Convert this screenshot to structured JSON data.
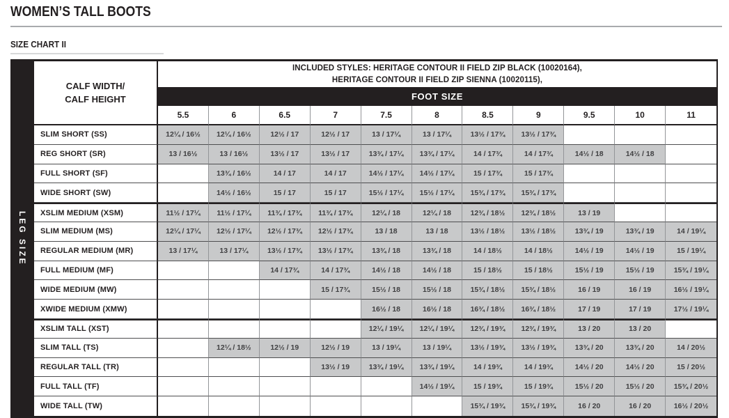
{
  "page": {
    "title": "WOMEN’S TALL BOOTS",
    "subtitle": "SIZE CHART II"
  },
  "colors": {
    "ink_black": "#231f20",
    "cell_gray": "#c8c9ca",
    "title_rule_gray": "#a8aaad",
    "subtitle_rule_gray": "#d7d8d9"
  },
  "table": {
    "leg_size_label": "LEG SIZE",
    "corner_label_line1": "CALF WIDTH/",
    "corner_label_line2": "CALF HEIGHT",
    "included_styles_line1": "INCLUDED STYLES: HERITAGE CONTOUR II FIELD ZIP BLACK (10020164),",
    "included_styles_line2": "HERITAGE CONTOUR II FIELD ZIP SIENNA (10020115),",
    "foot_size_label": "FOOT SIZE",
    "foot_sizes": [
      "5.5",
      "6",
      "6.5",
      "7",
      "7.5",
      "8",
      "8.5",
      "9",
      "9.5",
      "10",
      "11"
    ],
    "section_start_rows": [
      4,
      10
    ],
    "rows": [
      {
        "label": "SLIM SHORT (SS)",
        "cells": [
          "12¼ / 16½",
          "12¼ / 16½",
          "12½ / 17",
          "12½ / 17",
          "13 / 17¼",
          "13 / 17¼",
          "13½ / 17¾",
          "13½ / 17¾",
          "",
          "",
          ""
        ]
      },
      {
        "label": "REG SHORT (SR)",
        "cells": [
          "13 / 16½",
          "13 / 16½",
          "13½ / 17",
          "13½ / 17",
          "13¾ / 17¼",
          "13¾ / 17¼",
          "14 / 17¾",
          "14 / 17¾",
          "14½ / 18",
          "14½ / 18",
          ""
        ]
      },
      {
        "label": "FULL SHORT (SF)",
        "cells": [
          "",
          "13¾ / 16½",
          "14 / 17",
          "14 / 17",
          "14½ / 17¼",
          "14½ / 17¼",
          "15 / 17¾",
          "15 / 17¾",
          "",
          "",
          ""
        ]
      },
      {
        "label": "WIDE SHORT (SW)",
        "cells": [
          "",
          "14½ / 16½",
          "15 / 17",
          "15 / 17",
          "15½ / 17¼",
          "15½ / 17¼",
          "15¾ / 17¾",
          "15¾ / 17¾",
          "",
          "",
          ""
        ]
      },
      {
        "label": "XSLIM MEDIUM (XSM)",
        "cells": [
          "11½ / 17¼",
          "11½ / 17¼",
          "11¾ / 17¾",
          "11¾ / 17¾",
          "12¼ / 18",
          "12¼ / 18",
          "12¾ / 18½",
          "12¾ / 18½",
          "13 / 19",
          "",
          ""
        ]
      },
      {
        "label": "SLIM MEDIUM (MS)",
        "cells": [
          "12¼ / 17¼",
          "12½ / 17¼",
          "12½ / 17¾",
          "12½ / 17¾",
          "13 / 18",
          "13 / 18",
          "13½ / 18½",
          "13½ / 18½",
          "13¾ / 19",
          "13¾ / 19",
          "14 / 19¼"
        ]
      },
      {
        "label": "REGULAR  MEDIUM (MR)",
        "cells": [
          "13 / 17¼",
          "13 / 17¼",
          "13½ / 17¾",
          "13½ / 17¾",
          "13¾ / 18",
          "13¾ / 18",
          "14 / 18½",
          "14 / 18½",
          "14½ / 19",
          "14½ / 19",
          "15 / 19¼"
        ]
      },
      {
        "label": "FULL MEDIUM (MF)",
        "cells": [
          "",
          "",
          "14 / 17¾",
          "14 / 17¾",
          "14½ / 18",
          "14½ / 18",
          "15 / 18½",
          "15 / 18½",
          "15½ / 19",
          "15½ / 19",
          "15¾ / 19¼"
        ]
      },
      {
        "label": "WIDE MEDIUM (MW)",
        "cells": [
          "",
          "",
          "",
          "15 / 17¾",
          "15½ / 18",
          "15½ / 18",
          "15¾ / 18½",
          "15¾ / 18½",
          "16 / 19",
          "16 / 19",
          "16½ / 19¼"
        ]
      },
      {
        "label": "XWIDE MEDIUM (XMW)",
        "cells": [
          "",
          "",
          "",
          "",
          "16½ / 18",
          "16½ / 18",
          "16¾ / 18½",
          "16¾ / 18½",
          "17 / 19",
          "17 / 19",
          "17½ / 19¼"
        ]
      },
      {
        "label": "XSLIM TALL (XST)",
        "cells": [
          "",
          "",
          "",
          "",
          "12¼ / 19¼",
          "12¼ / 19¼",
          "12¾ / 19¾",
          "12¾ / 19¾",
          "13 / 20",
          "13 / 20",
          ""
        ]
      },
      {
        "label": "SLIM TALL (TS)",
        "cells": [
          "",
          "12¼ / 18½",
          "12½ / 19",
          "12½ / 19",
          "13 / 19¼",
          "13 / 19¼",
          "13½ / 19¾",
          "13½ / 19¾",
          "13¾ / 20",
          "13¾ / 20",
          "14 / 20½"
        ]
      },
      {
        "label": "REGULAR TALL (TR)",
        "cells": [
          "",
          "",
          "",
          "13½ / 19",
          "13¾ / 19¼",
          "13¾ / 19¼",
          "14 / 19¾",
          "14 / 19¾",
          "14½ / 20",
          "14½ / 20",
          "15 / 20½"
        ]
      },
      {
        "label": "FULL TALL (TF)",
        "cells": [
          "",
          "",
          "",
          "",
          "",
          "14½ / 19¼",
          "15 / 19¾",
          "15 / 19¾",
          "15½ / 20",
          "15½ / 20",
          "15¾ / 20½"
        ]
      },
      {
        "label": "WIDE TALL (TW)",
        "cells": [
          "",
          "",
          "",
          "",
          "",
          "",
          "15¾ / 19¾",
          "15¾ / 19¾",
          "16 / 20",
          "16 / 20",
          "16½ / 20½"
        ]
      }
    ]
  }
}
